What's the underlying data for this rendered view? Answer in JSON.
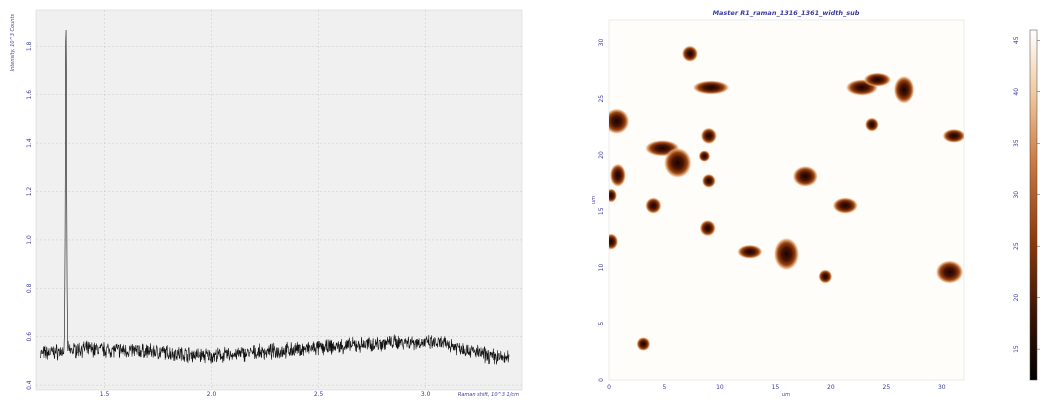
{
  "chart_data": [
    {
      "type": "line",
      "title": "",
      "xlabel": "Raman shift, 10^3 1/cm",
      "ylabel": "Intensity, 10^3 Counts",
      "xlim": [
        1.18,
        3.45
      ],
      "ylim": [
        0.38,
        1.95
      ],
      "x_ticks": [
        "1.5",
        "2.0",
        "2.5",
        "3.0"
      ],
      "y_ticks": [
        "0.4",
        "0.6",
        "0.8",
        "1.0",
        "1.2",
        "1.4",
        "1.6",
        "1.8"
      ],
      "grid": true,
      "series": [
        {
          "name": "",
          "color": "#111111",
          "baseline": [
            [
              1.2,
              0.53
            ],
            [
              1.4,
              0.55
            ],
            [
              1.7,
              0.54
            ],
            [
              2.0,
              0.52
            ],
            [
              2.3,
              0.54
            ],
            [
              2.6,
              0.56
            ],
            [
              2.9,
              0.58
            ],
            [
              3.1,
              0.57
            ],
            [
              3.3,
              0.52
            ],
            [
              3.39,
              0.51
            ]
          ],
          "peak": {
            "x": 1.32,
            "y": 1.9,
            "half_width": 0.004
          },
          "noise_amplitude": 0.025
        }
      ]
    },
    {
      "type": "heatmap",
      "title": "Master R1_raman_1316_1361_width_sub",
      "xlabel": "um",
      "ylabel": "um",
      "xlim": [
        0,
        32
      ],
      "ylim": [
        0,
        32
      ],
      "x_ticks": [
        "0",
        "5",
        "10",
        "15",
        "20",
        "25",
        "30"
      ],
      "y_ticks": [
        "0",
        "5",
        "10",
        "15",
        "20",
        "25",
        "30"
      ],
      "colorbar": {
        "ticks": [
          "15",
          "20",
          "25",
          "30",
          "35",
          "40",
          "45"
        ],
        "range": [
          12,
          46
        ],
        "colormap": "white-to-black copper"
      },
      "spots": [
        {
          "x": 0.7,
          "y": 23,
          "rx": 1.1,
          "ry": 1.1
        },
        {
          "x": 7.3,
          "y": 29,
          "rx": 0.7,
          "ry": 0.7
        },
        {
          "x": 9.2,
          "y": 26,
          "rx": 1.6,
          "ry": 0.6
        },
        {
          "x": 4.8,
          "y": 20.6,
          "rx": 1.5,
          "ry": 0.7
        },
        {
          "x": 6.2,
          "y": 19.3,
          "rx": 1.2,
          "ry": 1.3
        },
        {
          "x": 0.8,
          "y": 18.2,
          "rx": 0.7,
          "ry": 1.0
        },
        {
          "x": 0.2,
          "y": 16.4,
          "rx": 0.5,
          "ry": 0.6
        },
        {
          "x": 9.0,
          "y": 21.7,
          "rx": 0.7,
          "ry": 0.7
        },
        {
          "x": 8.6,
          "y": 19.9,
          "rx": 0.5,
          "ry": 0.5
        },
        {
          "x": 9.0,
          "y": 17.7,
          "rx": 0.6,
          "ry": 0.6
        },
        {
          "x": 4.0,
          "y": 15.5,
          "rx": 0.7,
          "ry": 0.7
        },
        {
          "x": 8.9,
          "y": 13.5,
          "rx": 0.7,
          "ry": 0.7
        },
        {
          "x": 0.2,
          "y": 12.3,
          "rx": 0.6,
          "ry": 0.7
        },
        {
          "x": 12.7,
          "y": 11.4,
          "rx": 1.1,
          "ry": 0.6
        },
        {
          "x": 16.0,
          "y": 11.2,
          "rx": 1.1,
          "ry": 1.4
        },
        {
          "x": 17.7,
          "y": 18.1,
          "rx": 1.1,
          "ry": 0.9
        },
        {
          "x": 21.3,
          "y": 15.5,
          "rx": 1.1,
          "ry": 0.7
        },
        {
          "x": 19.5,
          "y": 9.2,
          "rx": 0.6,
          "ry": 0.6
        },
        {
          "x": 22.8,
          "y": 26.0,
          "rx": 1.4,
          "ry": 0.7
        },
        {
          "x": 24.2,
          "y": 26.7,
          "rx": 1.2,
          "ry": 0.6
        },
        {
          "x": 26.6,
          "y": 25.8,
          "rx": 0.9,
          "ry": 1.2
        },
        {
          "x": 23.7,
          "y": 22.7,
          "rx": 0.6,
          "ry": 0.6
        },
        {
          "x": 31.1,
          "y": 21.7,
          "rx": 1.0,
          "ry": 0.6
        },
        {
          "x": 30.7,
          "y": 9.6,
          "rx": 1.2,
          "ry": 1.0
        },
        {
          "x": 3.1,
          "y": 3.2,
          "rx": 0.6,
          "ry": 0.6
        }
      ]
    }
  ]
}
